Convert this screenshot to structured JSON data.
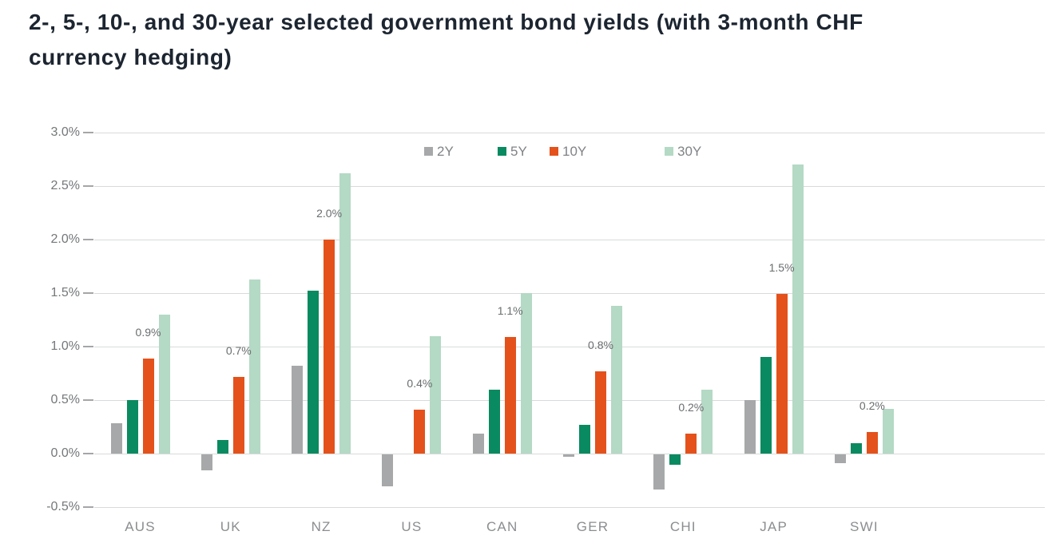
{
  "title": "2-, 5-, 10-, and 30-year selected government bond yields (with 3-month CHF currency hedging)",
  "title_lines": [
    "2-, 5-, 10-, and 30-year selected government bond yields (with 3-month CHF",
    "currency hedging)"
  ],
  "chart_data": {
    "type": "bar",
    "title": "2-, 5-, 10-, and 30-year selected government bond yields (with 3-month CHF currency hedging)",
    "categories": [
      "AUS",
      "UK",
      "NZ",
      "US",
      "CAN",
      "GER",
      "CHI",
      "JAP",
      "SWI"
    ],
    "series": [
      {
        "name": "2Y",
        "color": "#a7a8aa",
        "values": [
          0.28,
          -0.15,
          0.82,
          -0.3,
          0.19,
          -0.02,
          -0.33,
          0.5,
          -0.08
        ]
      },
      {
        "name": "5Y",
        "color": "#0a8a60",
        "values": [
          0.5,
          0.13,
          1.52,
          0.0,
          0.6,
          0.27,
          -0.1,
          0.9,
          0.1
        ]
      },
      {
        "name": "10Y",
        "color": "#e4511b",
        "values": [
          0.89,
          0.72,
          2.0,
          0.41,
          1.09,
          0.77,
          0.19,
          1.49,
          0.2
        ]
      },
      {
        "name": "30Y",
        "color": "#b4d9c5",
        "values": [
          1.3,
          1.63,
          2.62,
          1.1,
          1.5,
          1.38,
          0.6,
          2.7,
          0.42
        ]
      }
    ],
    "data_labels": {
      "series": "10Y",
      "values": [
        "0.9%",
        "0.7%",
        "2.0%",
        "0.4%",
        "1.1%",
        "0.8%",
        "0.2%",
        "1.5%",
        "0.2%"
      ]
    },
    "y_tick_labels": [
      "3.0%",
      "2.5%",
      "2.0%",
      "1.5%",
      "1.0%",
      "0.5%",
      "0.0%",
      "-0.5%"
    ],
    "ylim": [
      -0.5,
      3.0
    ],
    "grid": true,
    "legend_position": "top-center",
    "xlabel": "",
    "ylabel": ""
  },
  "colors": {
    "title": "#1c2530",
    "axis_label": "#74777a",
    "category_label": "#8b8d90",
    "data_label": "#696c6e",
    "gridline": "#d9dadb",
    "tick": "#a4a6a8",
    "legend_text": "#808386",
    "background": "#ffffff"
  }
}
